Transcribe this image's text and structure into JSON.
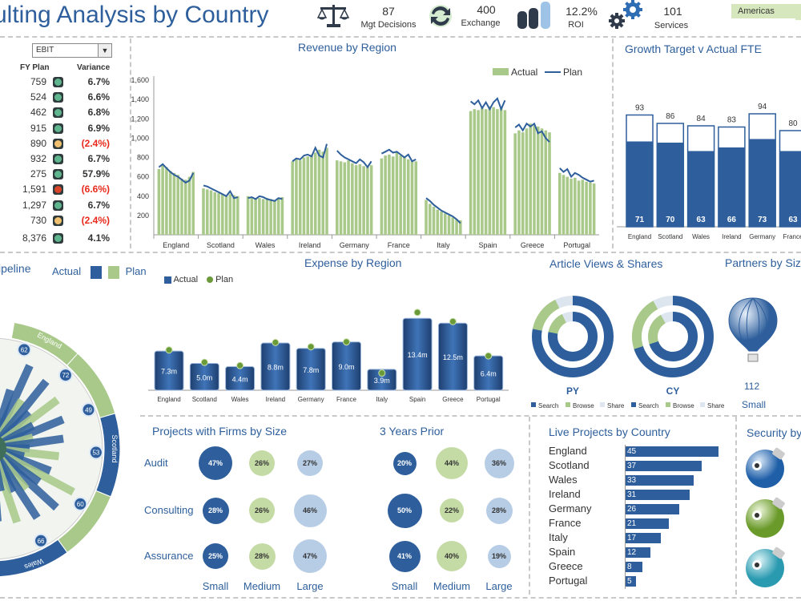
{
  "header": {
    "title": "ulting Analysis by Country",
    "kpis": [
      {
        "value": "87",
        "label": "Mgt Decisions",
        "icon": "scales-icon"
      },
      {
        "value": "400",
        "label": "Exchange",
        "icon": "exchange-icon"
      },
      {
        "value": "12.2%",
        "label": "ROI",
        "icon": "coins-icon"
      },
      {
        "value": "101",
        "label": "Services",
        "icon": "gears-icon"
      }
    ],
    "region_selector": "Americas"
  },
  "left_panel": {
    "metric_dropdown": "EBIT",
    "col_plan": "FY Plan",
    "col_variance": "Variance",
    "rows": [
      {
        "plan": "759",
        "variance": "6.7%",
        "status": "green"
      },
      {
        "plan": "524",
        "variance": "6.6%",
        "status": "green"
      },
      {
        "plan": "462",
        "variance": "6.8%",
        "status": "green"
      },
      {
        "plan": "915",
        "variance": "6.9%",
        "status": "green"
      },
      {
        "plan": "890",
        "variance": "(2.4%)",
        "status": "amber"
      },
      {
        "plan": "932",
        "variance": "6.7%",
        "status": "green"
      },
      {
        "plan": "275",
        "variance": "57.9%",
        "status": "green"
      },
      {
        "plan": "1,591",
        "variance": "(6.6%)",
        "status": "red"
      },
      {
        "plan": "1,297",
        "variance": "6.7%",
        "status": "green"
      },
      {
        "plan": "730",
        "variance": "(2.4%)",
        "status": "amber"
      }
    ],
    "total": {
      "plan": "8,376",
      "variance": "4.1%",
      "status": "green"
    }
  },
  "pipeline": {
    "title": "ipeline",
    "legend_actual": "Actual",
    "legend_plan": "Plan",
    "ring_labels": [
      "England",
      "Scotland",
      "Wales"
    ],
    "ring_values": [
      "62",
      "72",
      "49",
      "53",
      "60",
      "66"
    ]
  },
  "colors": {
    "actual": "#2e5f9c",
    "plan": "#a9c98a",
    "green_status": "#5fb58e",
    "amber_status": "#f0c070",
    "red_status": "#d9452b",
    "negative": "#e8291c"
  },
  "chart_data": [
    {
      "type": "bar",
      "title": "Revenue by Region",
      "categories": [
        "England",
        "Scotland",
        "Wales",
        "Ireland",
        "Germany",
        "France",
        "Italy",
        "Spain",
        "Greece",
        "Portugal"
      ],
      "series": [
        {
          "name": "Actual",
          "values": [
            [
              680,
              720,
              700,
              660,
              640,
              620,
              580,
              570,
              600,
              650
            ],
            [
              480,
              470,
              460,
              440,
              430,
              420,
              400,
              420,
              410,
              400
            ],
            [
              400,
              390,
              380,
              380,
              370,
              380,
              370,
              360,
              380,
              390
            ],
            [
              760,
              780,
              770,
              800,
              810,
              830,
              850,
              880,
              860,
              900
            ],
            [
              770,
              760,
              750,
              770,
              740,
              720,
              730,
              710,
              700,
              720
            ],
            [
              790,
              820,
              830,
              810,
              850,
              820,
              800,
              780,
              770,
              760
            ],
            [
              360,
              320,
              290,
              260,
              240,
              220,
              200,
              180,
              160,
              150
            ],
            [
              1280,
              1300,
              1290,
              1310,
              1300,
              1330,
              1320,
              1300,
              1310,
              1290
            ],
            [
              1050,
              1080,
              1060,
              1100,
              1150,
              1130,
              1120,
              1100,
              1080,
              1060
            ],
            [
              640,
              620,
              600,
              580,
              590,
              560,
              570,
              550,
              540,
              530
            ]
          ]
        },
        {
          "name": "Plan",
          "values": [
            [
              700,
              730,
              690,
              650,
              620,
              600,
              570,
              540,
              560,
              640
            ],
            [
              510,
              500,
              480,
              460,
              440,
              420,
              400,
              450,
              380,
              390
            ],
            [
              380,
              390,
              370,
              400,
              390,
              370,
              360,
              350,
              380,
              370
            ],
            [
              760,
              790,
              780,
              820,
              830,
              810,
              900,
              820,
              800,
              940
            ],
            [
              870,
              830,
              800,
              780,
              760,
              740,
              780,
              750,
              700,
              760
            ],
            [
              840,
              860,
              880,
              850,
              860,
              830,
              800,
              830,
              760,
              780
            ],
            [
              380,
              350,
              310,
              280,
              250,
              230,
              210,
              190,
              160,
              120
            ],
            [
              1380,
              1350,
              1390,
              1310,
              1370,
              1300,
              1370,
              1410,
              1300,
              1390
            ],
            [
              1110,
              1140,
              1080,
              1150,
              1120,
              1150,
              1050,
              1070,
              1000,
              960
            ],
            [
              690,
              650,
              680,
              600,
              640,
              620,
              590,
              570,
              550,
              560
            ]
          ]
        }
      ],
      "yticks": [
        "200",
        "400",
        "600",
        "800",
        "1,000",
        "1,200",
        "1,400",
        "1,600"
      ],
      "ylim": [
        0,
        1600
      ],
      "legend": [
        "Actual",
        "Plan"
      ]
    },
    {
      "type": "bar",
      "title": "Growth Target v Actual FTE",
      "categories": [
        "England",
        "Scotland",
        "Wales",
        "Ireland",
        "Germany",
        "France"
      ],
      "target": [
        93,
        86,
        84,
        83,
        94,
        80
      ],
      "actual": [
        71,
        70,
        63,
        66,
        73,
        63
      ]
    },
    {
      "type": "bar",
      "title": "Expense by Region",
      "categories": [
        "England",
        "Scotland",
        "Wales",
        "Ireland",
        "Germany",
        "France",
        "Italy",
        "Spain",
        "Greece",
        "Portugal"
      ],
      "actual": [
        7.3,
        5.0,
        4.4,
        8.8,
        7.8,
        9.0,
        3.9,
        13.4,
        12.5,
        6.4
      ],
      "labels": [
        "7.3m",
        "5.0m",
        "4.4m",
        "8.8m",
        "7.8m",
        "9.0m",
        "3.9m",
        "13.4m",
        "12.5m",
        "6.4m"
      ],
      "plan": [
        7.5,
        5.2,
        4.6,
        8.9,
        8.1,
        9.0,
        3.2,
        14.5,
        12.8,
        6.4
      ],
      "legend": [
        "Actual",
        "Plan"
      ]
    },
    {
      "type": "pie",
      "title": "Article Views & Shares",
      "charts": [
        {
          "label": "PY",
          "segments": [
            {
              "name": "Search",
              "value": 78
            },
            {
              "name": "Browse",
              "value": 15
            },
            {
              "name": "Share",
              "value": 7
            }
          ]
        },
        {
          "label": "CY",
          "segments": [
            {
              "name": "Search",
              "value": 70
            },
            {
              "name": "Browse",
              "value": 22
            },
            {
              "name": "Share",
              "value": 8
            }
          ]
        }
      ]
    },
    {
      "type": "bar",
      "title": "Live Projects by Country",
      "categories": [
        "England",
        "Scotland",
        "Wales",
        "Ireland",
        "Germany",
        "France",
        "Italy",
        "Spain",
        "Greece",
        "Portugal"
      ],
      "values": [
        45,
        37,
        33,
        31,
        26,
        21,
        17,
        12,
        8,
        5
      ]
    }
  ],
  "partners": {
    "title": "Partners by Siz",
    "value": "112",
    "caption": "Small"
  },
  "projects_by_size": {
    "title": "Projects with Firms by Size",
    "title_prior": "3 Years Prior",
    "rows": [
      "Audit",
      "Consulting",
      "Assurance"
    ],
    "cols": [
      "Small",
      "Medium",
      "Large"
    ],
    "current": [
      [
        "47%",
        "26%",
        "27%"
      ],
      [
        "28%",
        "26%",
        "46%"
      ],
      [
        "25%",
        "28%",
        "47%"
      ]
    ],
    "prior": [
      [
        "20%",
        "44%",
        "36%"
      ],
      [
        "50%",
        "22%",
        "28%"
      ],
      [
        "41%",
        "40%",
        "19%"
      ]
    ]
  },
  "security": {
    "title": "Security by"
  }
}
